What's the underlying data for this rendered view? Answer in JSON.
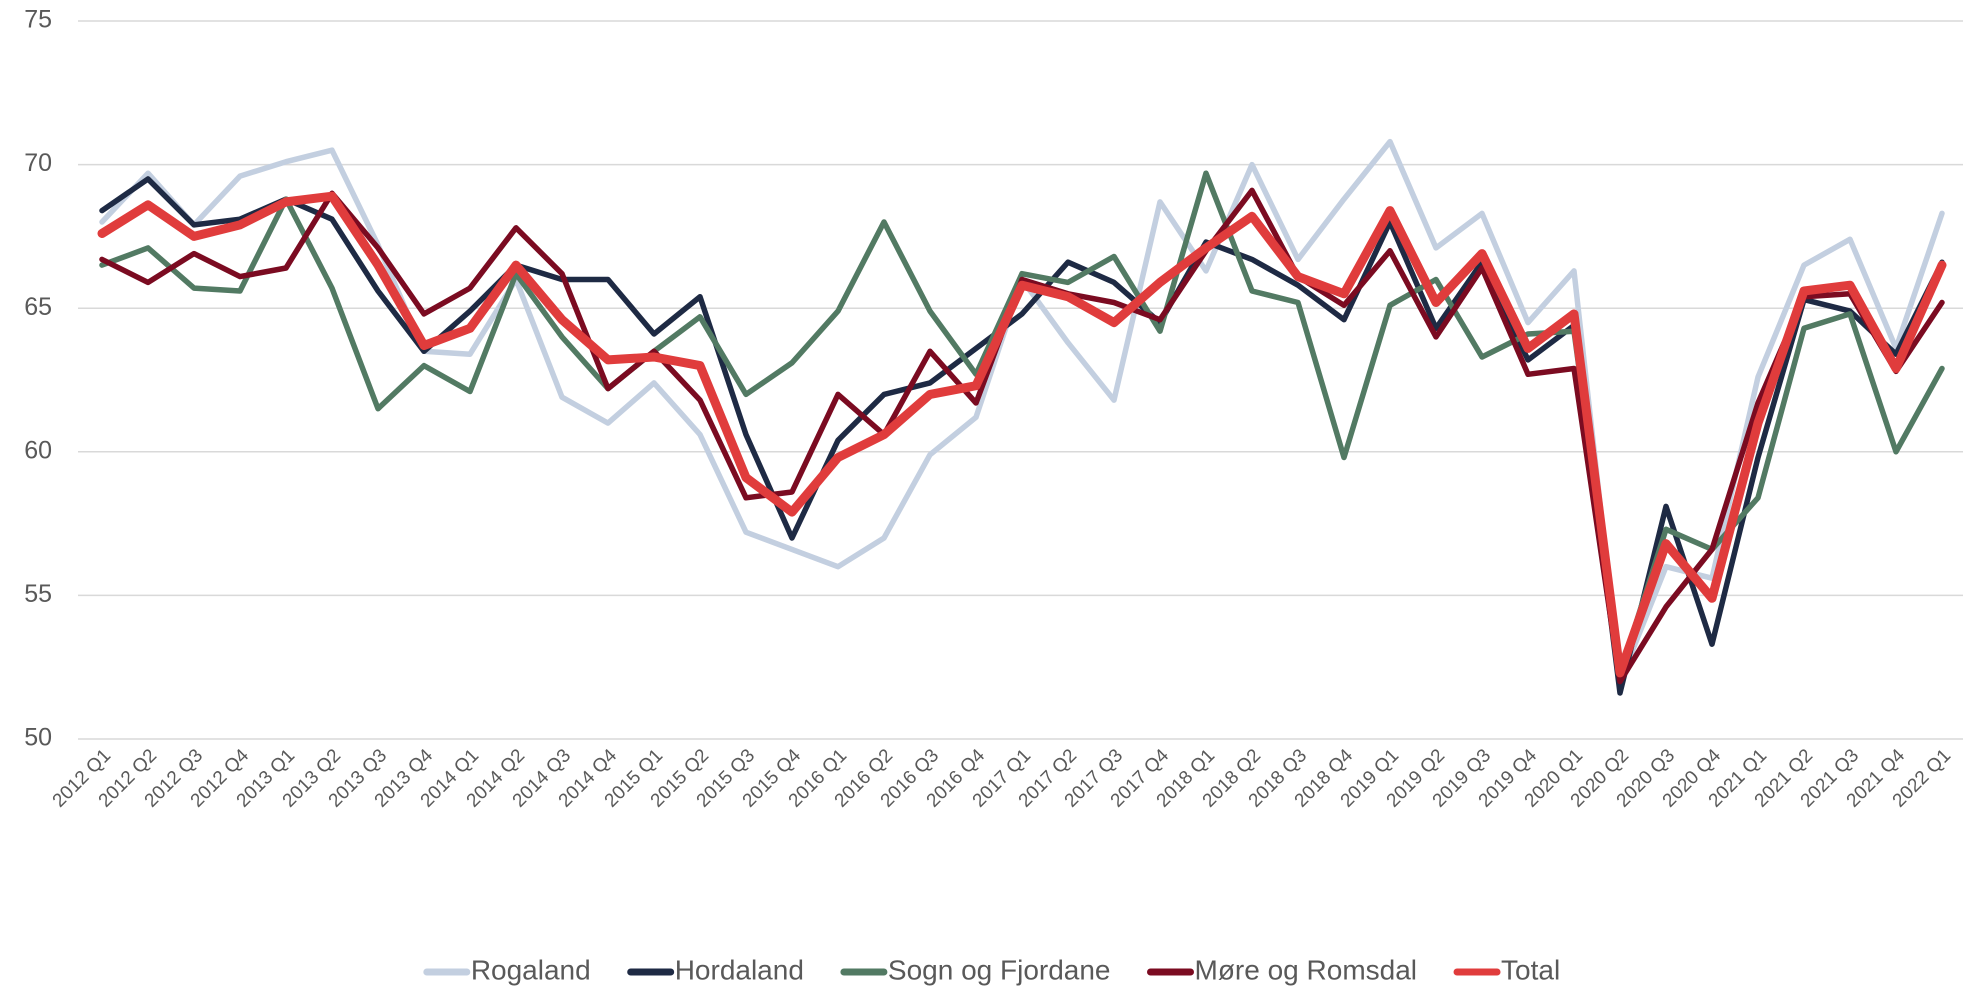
{
  "chart_data": {
    "type": "line",
    "categories": [
      "2012 Q1",
      "2012 Q2",
      "2012 Q3",
      "2012 Q4",
      "2013 Q1",
      "2013 Q2",
      "2013 Q3",
      "2013 Q4",
      "2014 Q1",
      "2014 Q2",
      "2014 Q3",
      "2014 Q4",
      "2015 Q1",
      "2015 Q2",
      "2015 Q3",
      "2015 Q4",
      "2016 Q1",
      "2016 Q2",
      "2016 Q3",
      "2016 Q4",
      "2017 Q1",
      "2017 Q2",
      "2017 Q3",
      "2017 Q4",
      "2018 Q1",
      "2018 Q2",
      "2018 Q3",
      "2018 Q4",
      "2019 Q1",
      "2019 Q2",
      "2019 Q3",
      "2019 Q4",
      "2020 Q1",
      "2020 Q2",
      "2020 Q3",
      "2020 Q4",
      "2021 Q1",
      "2021 Q2",
      "2021 Q3",
      "2021 Q4",
      "2022 Q1"
    ],
    "series": [
      {
        "name": "Rogaland",
        "color": "#c3cfe0",
        "values": [
          68.0,
          69.7,
          67.9,
          69.6,
          70.1,
          70.5,
          67.2,
          63.5,
          63.4,
          66.0,
          61.9,
          61.0,
          62.4,
          60.6,
          57.2,
          56.6,
          56.0,
          57.0,
          59.9,
          61.2,
          66.0,
          63.8,
          61.8,
          68.7,
          66.3,
          70.0,
          66.7,
          68.8,
          70.8,
          67.1,
          68.3,
          64.5,
          66.3,
          52.0,
          56.0,
          55.6,
          62.6,
          66.5,
          67.4,
          63.6,
          68.3
        ]
      },
      {
        "name": "Hordaland",
        "color": "#1e2a44",
        "values": [
          68.4,
          69.5,
          67.9,
          68.1,
          68.8,
          68.1,
          65.6,
          63.5,
          64.9,
          66.5,
          66.0,
          66.0,
          64.1,
          65.4,
          60.6,
          57.0,
          60.4,
          62.0,
          62.4,
          63.6,
          64.8,
          66.6,
          65.9,
          64.5,
          67.3,
          66.7,
          65.8,
          64.6,
          68.0,
          64.3,
          66.6,
          63.2,
          64.4,
          51.6,
          58.1,
          53.3,
          59.8,
          65.3,
          64.9,
          63.4,
          66.6
        ]
      },
      {
        "name": "Sogn og Fjordane",
        "color": "#527a63",
        "values": [
          66.5,
          67.1,
          65.7,
          65.6,
          68.8,
          65.7,
          61.5,
          63.0,
          62.1,
          66.2,
          64.0,
          62.2,
          63.5,
          64.7,
          62.0,
          63.1,
          64.9,
          68.0,
          64.9,
          62.7,
          66.2,
          65.9,
          66.8,
          64.2,
          69.7,
          65.6,
          65.2,
          59.8,
          65.1,
          66.0,
          63.3,
          64.1,
          64.2,
          52.3,
          57.3,
          56.6,
          58.4,
          64.3,
          64.8,
          60.0,
          62.9
        ]
      },
      {
        "name": "Møre og Romsdal",
        "color": "#7b0b21",
        "values": [
          66.7,
          65.9,
          66.9,
          66.1,
          66.4,
          69.0,
          67.1,
          64.8,
          65.7,
          67.8,
          66.2,
          62.2,
          63.5,
          61.8,
          58.4,
          58.6,
          62.0,
          60.6,
          63.5,
          61.7,
          66.0,
          65.5,
          65.2,
          64.6,
          67.0,
          69.1,
          66.1,
          65.1,
          67.0,
          64.0,
          66.4,
          62.7,
          62.9,
          52.0,
          54.6,
          56.6,
          61.7,
          65.4,
          65.5,
          62.8,
          65.2
        ]
      },
      {
        "name": "Total",
        "color": "#e03c3c",
        "values": [
          67.6,
          68.6,
          67.5,
          67.9,
          68.7,
          68.9,
          66.5,
          63.7,
          64.3,
          66.5,
          64.6,
          63.2,
          63.3,
          63.0,
          59.1,
          57.9,
          59.8,
          60.6,
          62.0,
          62.3,
          65.8,
          65.4,
          64.5,
          65.9,
          67.1,
          68.2,
          66.1,
          65.5,
          68.4,
          65.2,
          66.9,
          63.6,
          64.8,
          52.3,
          56.8,
          54.9,
          61.0,
          65.6,
          65.8,
          62.9,
          66.5
        ]
      }
    ],
    "ylim": [
      50,
      75
    ],
    "yticks": [
      50,
      55,
      60,
      65,
      70,
      75
    ],
    "grid": true,
    "legend": "bottom"
  }
}
